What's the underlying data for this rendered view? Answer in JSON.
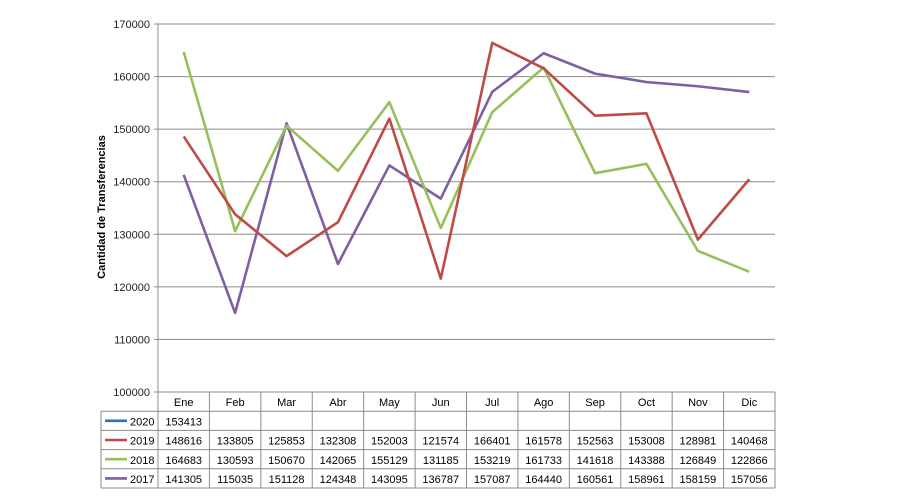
{
  "chart_data": {
    "type": "line",
    "ylabel": "Cantidad de Transferencias",
    "ylim": [
      100000,
      170000
    ],
    "yticks": [
      100000,
      110000,
      120000,
      130000,
      140000,
      150000,
      160000,
      170000
    ],
    "grid": true,
    "legend": "data-table-bottom",
    "categories": [
      "Ene",
      "Feb",
      "Mar",
      "Abr",
      "May",
      "Jun",
      "Jul",
      "Ago",
      "Sep",
      "Oct",
      "Nov",
      "Dic"
    ],
    "series": [
      {
        "name": "2020",
        "color": "#2e75b6",
        "values": [
          153413,
          null,
          null,
          null,
          null,
          null,
          null,
          null,
          null,
          null,
          null,
          null
        ]
      },
      {
        "name": "2019",
        "color": "#be4b48",
        "values": [
          148616,
          133805,
          125853,
          132308,
          152003,
          121574,
          166401,
          161578,
          152563,
          153008,
          128981,
          140468
        ]
      },
      {
        "name": "2018",
        "color": "#98c05a",
        "values": [
          164683,
          130593,
          150670,
          142065,
          155129,
          131185,
          153219,
          161733,
          141618,
          143388,
          126849,
          122866
        ]
      },
      {
        "name": "2017",
        "color": "#7e5fa2",
        "values": [
          141305,
          115035,
          151128,
          124348,
          143095,
          136787,
          157087,
          164440,
          160561,
          158961,
          158159,
          157056
        ]
      }
    ]
  }
}
